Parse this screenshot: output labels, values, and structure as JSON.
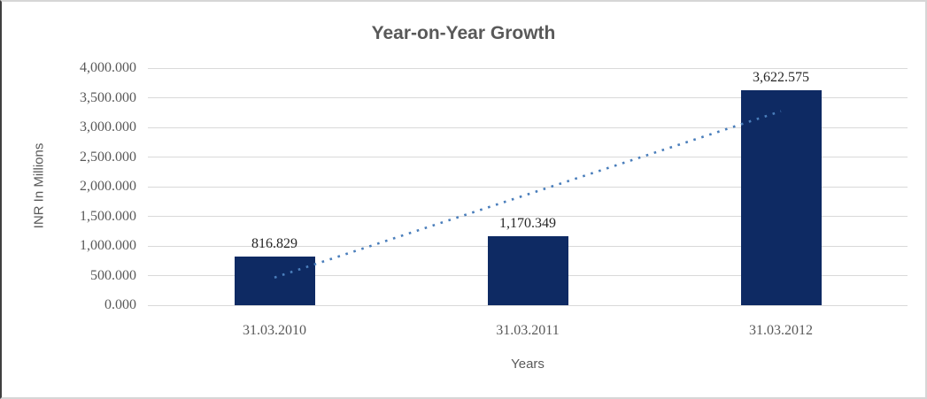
{
  "chart_data": {
    "type": "bar",
    "title": "Year-on-Year Growth",
    "xlabel": "Years",
    "ylabel": "INR In Millions",
    "categories": [
      "31.03.2010",
      "31.03.2011",
      "31.03.2012"
    ],
    "values": [
      816.829,
      1170.349,
      3622.575
    ],
    "data_labels": [
      "816.829",
      "1,170.349",
      "3,622.575"
    ],
    "y_tick_values": [
      0,
      500,
      1000,
      1500,
      2000,
      2500,
      3000,
      3500,
      4000
    ],
    "y_tick_labels": [
      "0.000",
      "500.000",
      "1,000.000",
      "1,500.000",
      "2,000.000",
      "2,500.000",
      "3,000.000",
      "3,500.000",
      "4,000.000"
    ],
    "ylim": [
      0,
      4000
    ],
    "grid": "horizontal",
    "legend": "none",
    "trendline": {
      "type": "linear",
      "style": "dotted",
      "start_value": 467,
      "end_value": 3273
    }
  },
  "colors": {
    "bar": "#0e2a63",
    "trendline": "#4a7ebb",
    "gridline": "#d9d9d9",
    "title_text": "#595959",
    "axis_text": "#595959",
    "data_label_text": "#262626"
  }
}
